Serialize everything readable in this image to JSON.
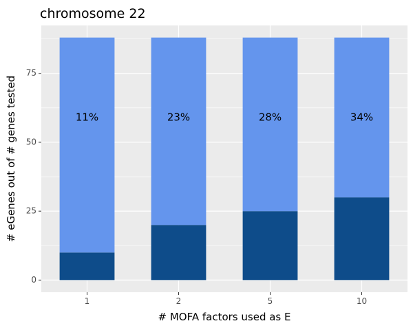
{
  "chart_data": {
    "type": "bar",
    "stacked": true,
    "title": "chromosome 22",
    "xlabel": "# MOFA factors used as E",
    "ylabel": "# eGenes out of # genes tested",
    "categories": [
      "1",
      "2",
      "5",
      "10"
    ],
    "series": [
      {
        "values": [
          10,
          20,
          25,
          30
        ],
        "color": "#0e4c8a"
      },
      {
        "values": [
          78,
          68,
          63,
          58
        ],
        "color": "#6495ed"
      }
    ],
    "bar_labels": [
      "11%",
      "23%",
      "28%",
      "34%"
    ],
    "bar_label_value": 59,
    "ylim": [
      -4.4,
      92.4
    ],
    "yticks": [
      0,
      25,
      50,
      75
    ],
    "grid": true,
    "legend": "none",
    "panel_color": "#ebebeb",
    "grid_color": "#ffffff"
  }
}
